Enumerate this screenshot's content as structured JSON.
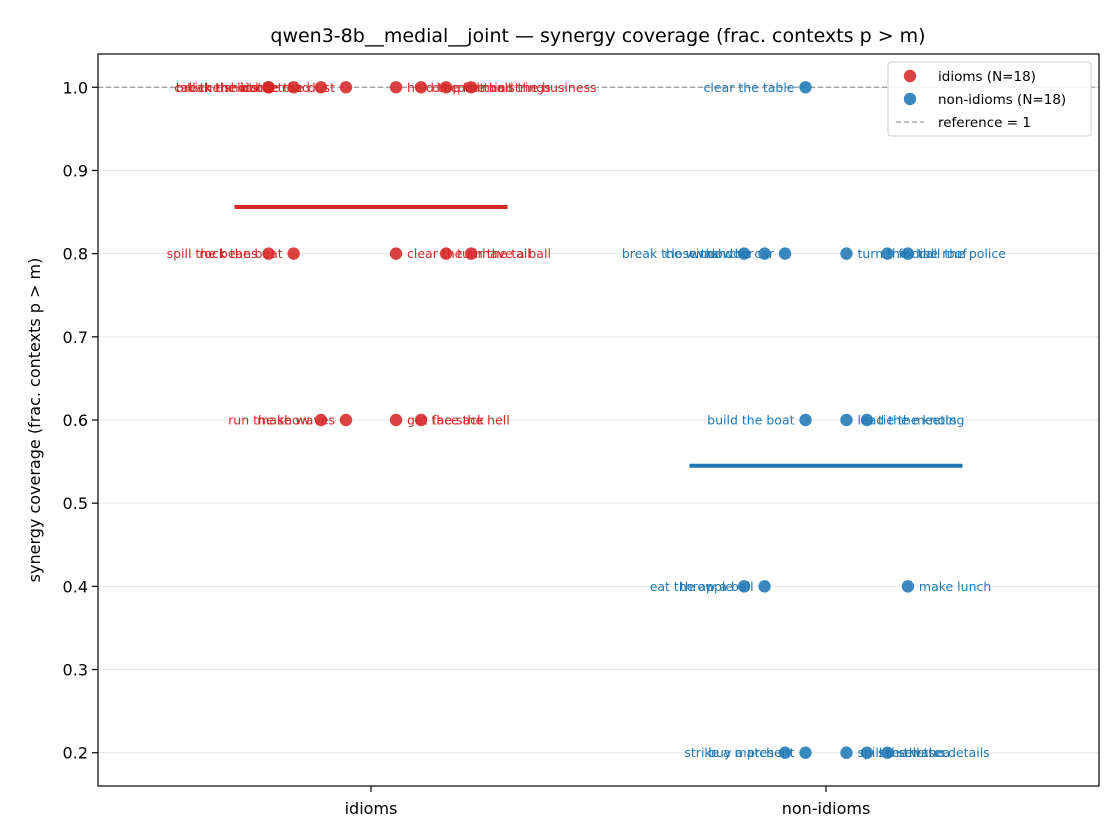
{
  "chart_data": {
    "type": "scatter",
    "title": "qwen3-8b__medial__joint — synergy coverage  (frac. contexts p > m)",
    "ylabel": "synergy coverage  (frac. contexts p > m)",
    "xlabel": "",
    "categories": [
      "idioms",
      "non-idioms"
    ],
    "ylim": [
      0.16,
      1.04
    ],
    "yticks": [
      "0.2",
      "0.3",
      "0.4",
      "0.5",
      "0.6",
      "0.7",
      "0.8",
      "0.9",
      "1.0"
    ],
    "grid": "horizontal",
    "legend_position": "top-right",
    "reference": {
      "value": 1,
      "label": "reference = 1"
    },
    "series": [
      {
        "name": "idioms (N=18)",
        "category": "idioms",
        "color": "#d62728",
        "mean": 0.856,
        "points": [
          {
            "label": "call the shots",
            "y": 1.0,
            "offset": -0.225
          },
          {
            "label": "break the ice",
            "y": 1.0,
            "offset": -0.225
          },
          {
            "label": "kick the bucket",
            "y": 1.0,
            "offset": -0.17
          },
          {
            "label": "hit the road",
            "y": 1.0,
            "offset": -0.11
          },
          {
            "label": "bite the dust",
            "y": 1.0,
            "offset": -0.055
          },
          {
            "label": "hold the fort",
            "y": 1.0,
            "offset": 0.055
          },
          {
            "label": "drop the ball",
            "y": 1.0,
            "offset": 0.11
          },
          {
            "label": "pull the strings",
            "y": 1.0,
            "offset": 0.165
          },
          {
            "label": "mind the business",
            "y": 1.0,
            "offset": 0.22
          },
          {
            "label": "spill the beans",
            "y": 0.8,
            "offset": -0.225
          },
          {
            "label": "rock the boat",
            "y": 0.8,
            "offset": -0.17
          },
          {
            "label": "clear the air",
            "y": 0.8,
            "offset": 0.055
          },
          {
            "label": "turn the tail",
            "y": 0.8,
            "offset": 0.165
          },
          {
            "label": "have a ball",
            "y": 0.8,
            "offset": 0.22
          },
          {
            "label": "run the show",
            "y": 0.6,
            "offset": -0.11
          },
          {
            "label": "make waves",
            "y": 0.6,
            "offset": -0.055
          },
          {
            "label": "get the sack",
            "y": 0.6,
            "offset": 0.055
          },
          {
            "label": "face the hell",
            "y": 0.6,
            "offset": 0.11
          }
        ]
      },
      {
        "name": "non-idioms (N=18)",
        "category": "non-idioms",
        "color": "#1f77b4",
        "mean": 0.545,
        "points": [
          {
            "label": "clear the table",
            "y": 1.0,
            "offset": -0.045
          },
          {
            "label": "break the window",
            "y": 0.8,
            "offset": -0.18
          },
          {
            "label": "close the door",
            "y": 0.8,
            "offset": -0.135
          },
          {
            "label": "wash the car",
            "y": 0.8,
            "offset": -0.09
          },
          {
            "label": "turn the dial",
            "y": 0.8,
            "offset": 0.045
          },
          {
            "label": "fix the roof",
            "y": 0.8,
            "offset": 0.135
          },
          {
            "label": "call the police",
            "y": 0.8,
            "offset": 0.18
          },
          {
            "label": "build the boat",
            "y": 0.6,
            "offset": -0.045
          },
          {
            "label": "lead the meeting",
            "y": 0.6,
            "offset": 0.045
          },
          {
            "label": "tie the knots",
            "y": 0.6,
            "offset": 0.09
          },
          {
            "label": "eat the apple",
            "y": 0.4,
            "offset": -0.18
          },
          {
            "label": "throw a ball",
            "y": 0.4,
            "offset": -0.135
          },
          {
            "label": "make lunch",
            "y": 0.4,
            "offset": 0.18
          },
          {
            "label": "strike a match",
            "y": 0.2,
            "offset": -0.09
          },
          {
            "label": "buy a present",
            "y": 0.2,
            "offset": -0.045
          },
          {
            "label": "spill the water",
            "y": 0.2,
            "offset": 0.045
          },
          {
            "label": "see the sea",
            "y": 0.2,
            "offset": 0.09
          },
          {
            "label": "sell the details",
            "y": 0.2,
            "offset": 0.135
          }
        ]
      }
    ]
  }
}
